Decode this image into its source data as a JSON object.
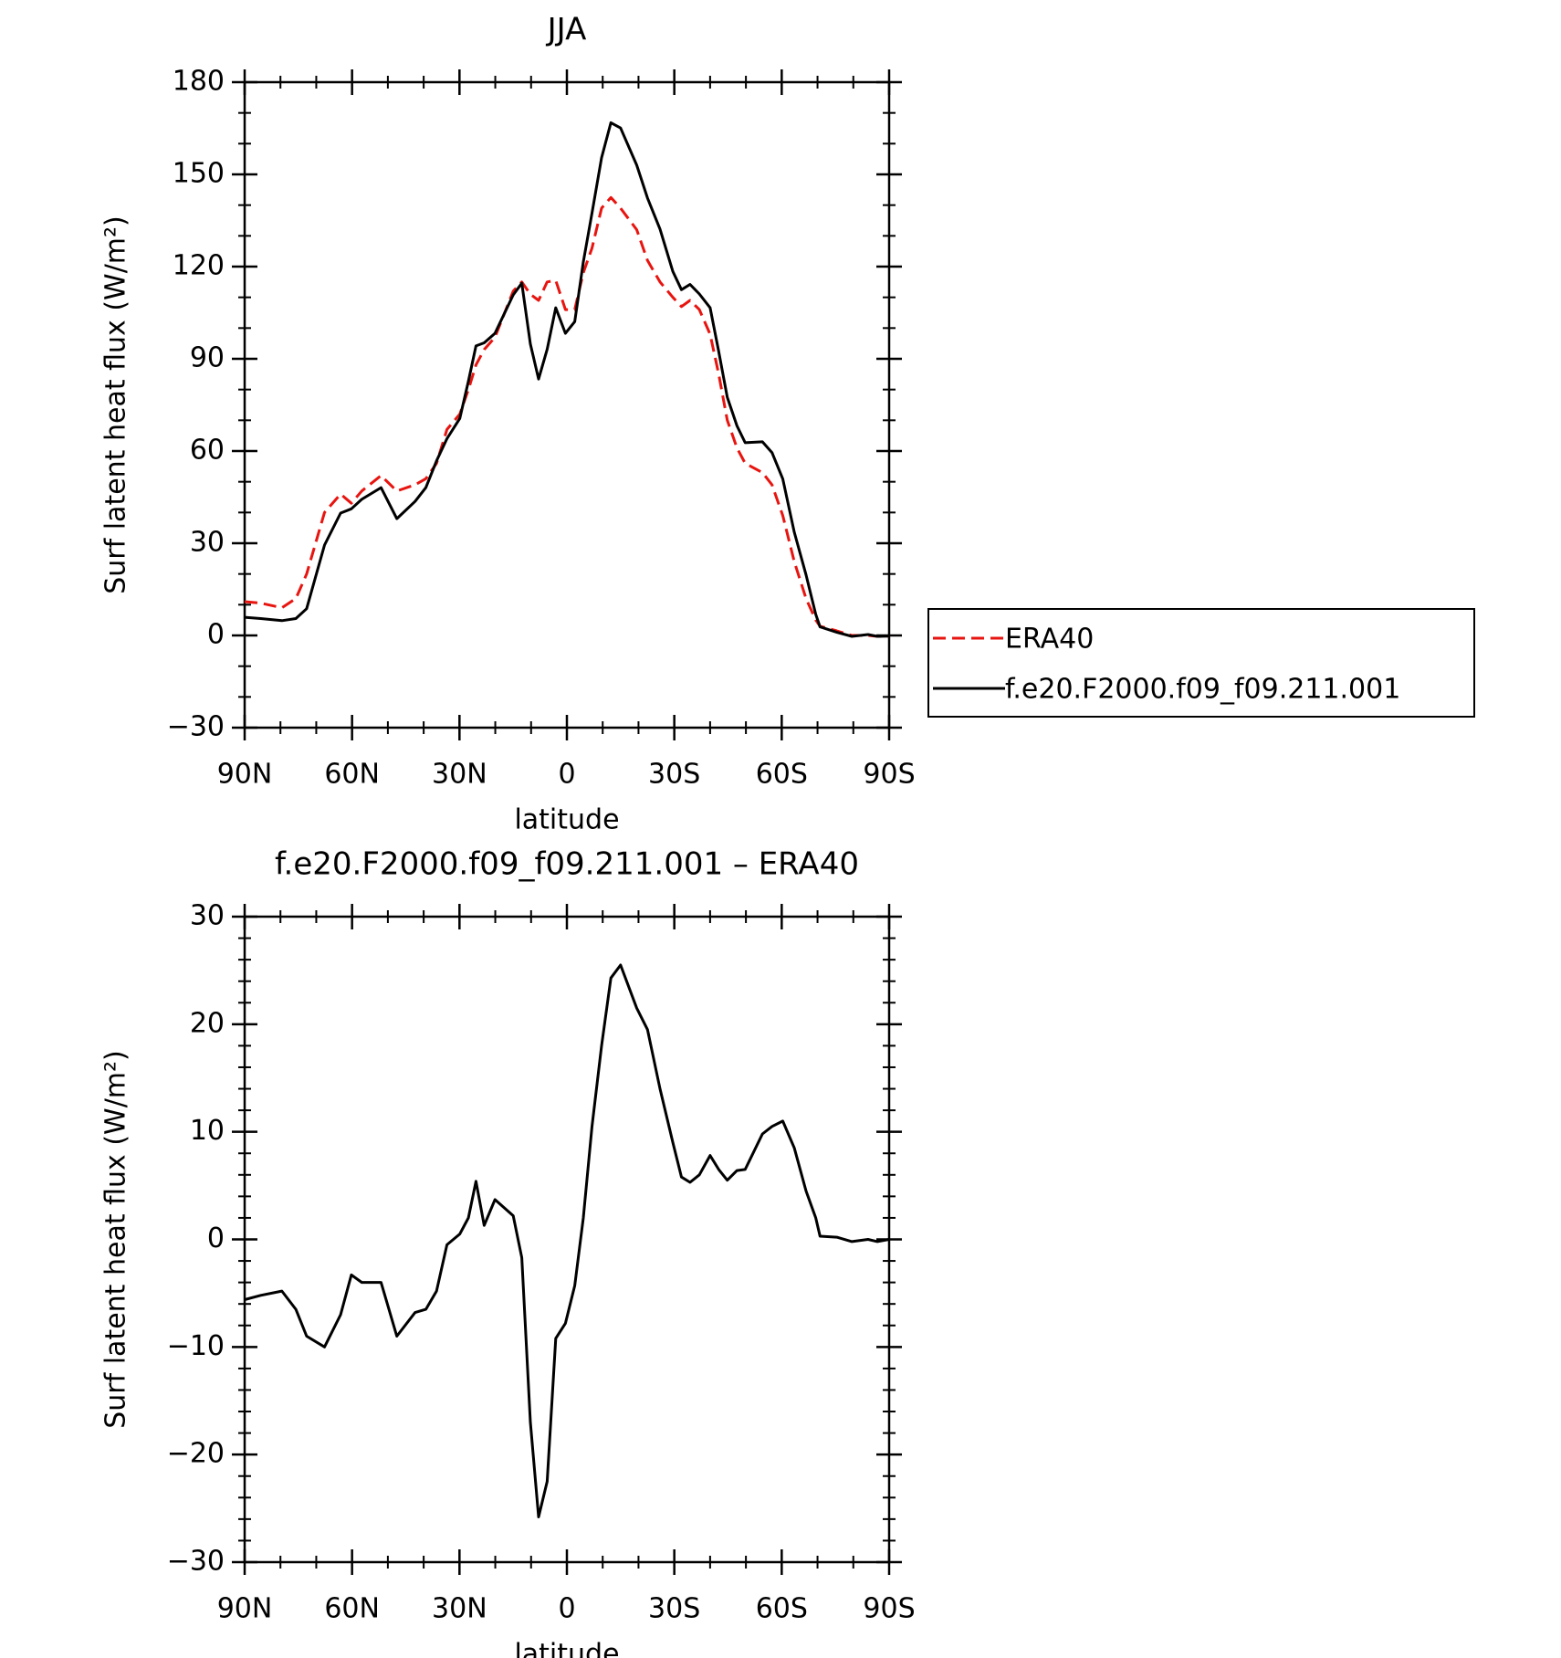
{
  "chart_data": [
    {
      "type": "line",
      "title": "JJA",
      "xlabel": "latitude",
      "ylabel": "Surf latent heat flux (W/m²)",
      "x": [
        90,
        85.5,
        79.6,
        75.7,
        72.7,
        67.7,
        63.2,
        60.2,
        57.3,
        51.9,
        47.5,
        42.4,
        39.4,
        36.4,
        33.5,
        29.9,
        27.5,
        25.4,
        23.1,
        20.1,
        15.0,
        12.6,
        10.2,
        7.9,
        5.5,
        3.1,
        0.4,
        -2.2,
        -4.6,
        -7.0,
        -9.7,
        -12.3,
        -15.0,
        -19.5,
        -22.5,
        -26.0,
        -29.6,
        -32.0,
        -34.4,
        -37.0,
        -40.0,
        -42.4,
        -44.8,
        -47.5,
        -49.8,
        -54.6,
        -57.3,
        -60.3,
        -63.5,
        -66.8,
        -69.5,
        -70.7,
        -75.4,
        -79.6,
        -84.1,
        -86.7,
        -90
      ],
      "series": [
        {
          "name": "ERA40",
          "color": "#e8140f",
          "dash": true,
          "values": [
            11,
            10.5,
            9,
            12,
            20,
            40,
            46,
            43,
            47,
            52,
            47,
            49,
            51,
            56,
            67,
            72,
            80,
            88,
            93,
            97,
            112,
            115,
            111,
            109,
            115,
            115.5,
            106,
            106,
            118,
            126,
            139,
            142.5,
            139,
            132,
            122,
            115,
            110,
            107,
            109,
            106,
            98,
            85,
            70,
            61,
            56,
            53,
            49,
            39,
            24,
            12,
            5,
            3,
            1.5,
            0,
            0,
            -0.3,
            -0.3
          ]
        },
        {
          "name": "f.e20.F2000.f09_f09.211.001",
          "color": "#000000",
          "dash": false,
          "values": [
            5.9,
            5.5,
            4.8,
            5.5,
            8.7,
            29.4,
            39.8,
            41.2,
            44.3,
            48.1,
            38,
            43.6,
            48.1,
            56.8,
            64,
            70.6,
            82.7,
            94.2,
            95.2,
            98.3,
            110.8,
            114.6,
            94.8,
            83.4,
            93.1,
            106.6,
            98.3,
            102.1,
            121.5,
            137.4,
            155.4,
            166.8,
            165.1,
            153,
            142.3,
            132.2,
            118.4,
            112.5,
            114.2,
            111.1,
            106.6,
            92.4,
            77.5,
            68.2,
            62.7,
            63,
            59.5,
            50.9,
            33.6,
            19.7,
            6.9,
            2.8,
            1.0,
            -0.3,
            0.3,
            -0.3,
            -0.2
          ]
        }
      ],
      "xlim": [
        90,
        -90
      ],
      "xticks": [
        {
          "value": 90,
          "label": "90N"
        },
        {
          "value": 60,
          "label": "60N"
        },
        {
          "value": 30,
          "label": "30N"
        },
        0,
        {
          "value": -30,
          "label": "30S"
        },
        {
          "value": -60,
          "label": "60S"
        },
        {
          "value": -90,
          "label": "90S"
        }
      ],
      "ylim": [
        -30,
        180
      ],
      "yticks": [
        {
          "value": -30,
          "label": "−30"
        },
        0,
        30,
        60,
        90,
        120,
        150,
        180
      ]
    },
    {
      "type": "line",
      "title": "f.e20.F2000.f09_f09.211.001 – ERA40",
      "xlabel": "latitude",
      "ylabel": "Surf latent heat flux (W/m²)",
      "x": [
        90,
        85.5,
        79.6,
        75.7,
        72.7,
        67.7,
        63.2,
        60.2,
        57.3,
        51.9,
        47.5,
        42.4,
        39.4,
        36.4,
        33.5,
        29.9,
        27.5,
        25.4,
        23.1,
        20.1,
        15.0,
        12.6,
        10.2,
        7.9,
        5.5,
        3.1,
        0.4,
        -2.2,
        -4.6,
        -7.0,
        -9.7,
        -12.3,
        -15.0,
        -19.5,
        -22.5,
        -26.0,
        -29.6,
        -32.0,
        -34.4,
        -37.0,
        -40.0,
        -42.4,
        -44.8,
        -47.5,
        -49.8,
        -54.6,
        -57.3,
        -60.3,
        -63.5,
        -66.8,
        -69.5,
        -70.7,
        -75.4,
        -79.6,
        -84.1,
        -86.7,
        -90
      ],
      "color": "#000000",
      "values": [
        -5.6,
        -5.2,
        -4.8,
        -6.5,
        -9,
        -10,
        -7,
        -3.3,
        -4,
        -4,
        -9,
        -6.8,
        -6.5,
        -4.8,
        -0.5,
        0.5,
        2,
        5.4,
        1.3,
        3.7,
        2.2,
        -1.7,
        -17,
        -25.8,
        -22.5,
        -9.2,
        -7.8,
        -4.3,
        2,
        10.5,
        18,
        24.3,
        25.5,
        21.5,
        19.5,
        14,
        9,
        5.8,
        5.3,
        6,
        7.8,
        6.5,
        5.5,
        6.4,
        6.5,
        9.8,
        10.5,
        11,
        8.5,
        4.5,
        2,
        0.3,
        0.2,
        -0.2,
        0,
        -0.2,
        0
      ],
      "xlim": [
        90,
        -90
      ],
      "xticks": [
        {
          "value": 90,
          "label": "90N"
        },
        {
          "value": 60,
          "label": "60N"
        },
        {
          "value": 30,
          "label": "30N"
        },
        0,
        {
          "value": -30,
          "label": "30S"
        },
        {
          "value": -60,
          "label": "60S"
        },
        {
          "value": -90,
          "label": "90S"
        }
      ],
      "ylim": [
        -30,
        30
      ],
      "yticks": [
        {
          "value": -30,
          "label": "−30"
        },
        {
          "value": -20,
          "label": "−20"
        },
        {
          "value": -10,
          "label": "−10"
        },
        0,
        10,
        20,
        30
      ]
    }
  ]
}
